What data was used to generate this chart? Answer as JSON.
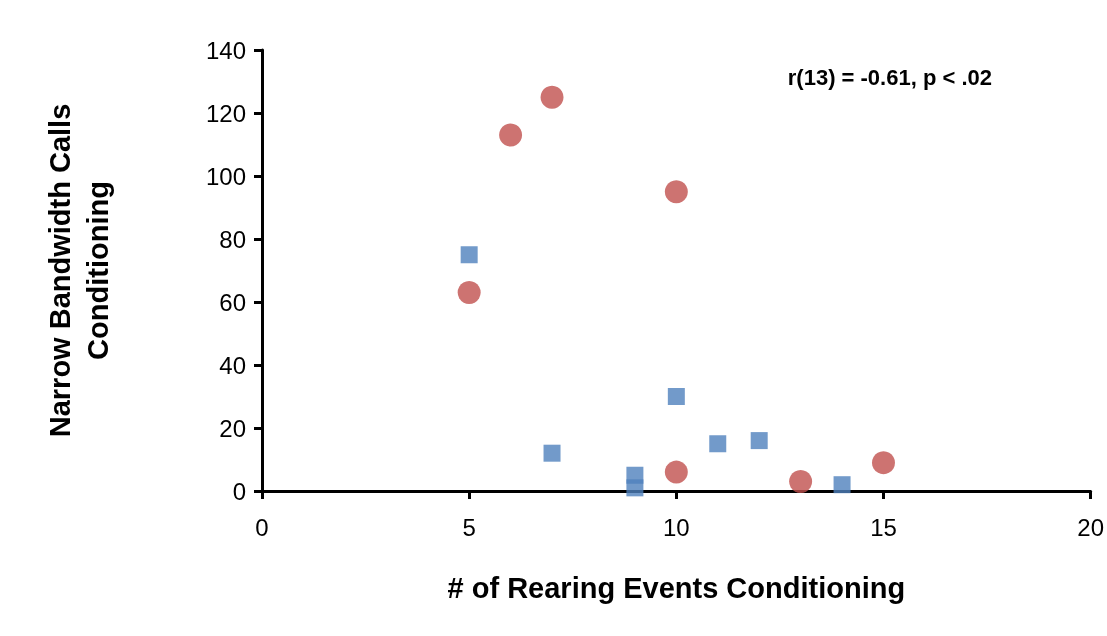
{
  "chart_data": {
    "type": "scatter",
    "xlabel": "# of Rearing Events Conditioning",
    "ylabel": "Narrow Bandwidth Calls\nConditioning",
    "annotations": [
      "r(13) = -0.61, p < .02"
    ],
    "series": [
      {
        "color": "#c0504d",
        "marker": "circle",
        "x": [
          5,
          6,
          7,
          10,
          10,
          13,
          15
        ],
        "values": [
          63,
          113,
          125,
          95,
          6,
          3,
          9
        ]
      },
      {
        "color": "#4f81bd",
        "marker": "square",
        "x": [
          5,
          7,
          9,
          9,
          10,
          11,
          12,
          14
        ],
        "values": [
          75,
          12,
          5,
          1,
          30,
          15,
          16,
          2
        ]
      }
    ],
    "xlim": [
      0,
      20
    ],
    "xticks": [
      0,
      5,
      10,
      15,
      20
    ],
    "ylim": [
      0,
      140
    ],
    "yticks": [
      0,
      20,
      40,
      60,
      80,
      100,
      120,
      140
    ],
    "grid": false
  }
}
